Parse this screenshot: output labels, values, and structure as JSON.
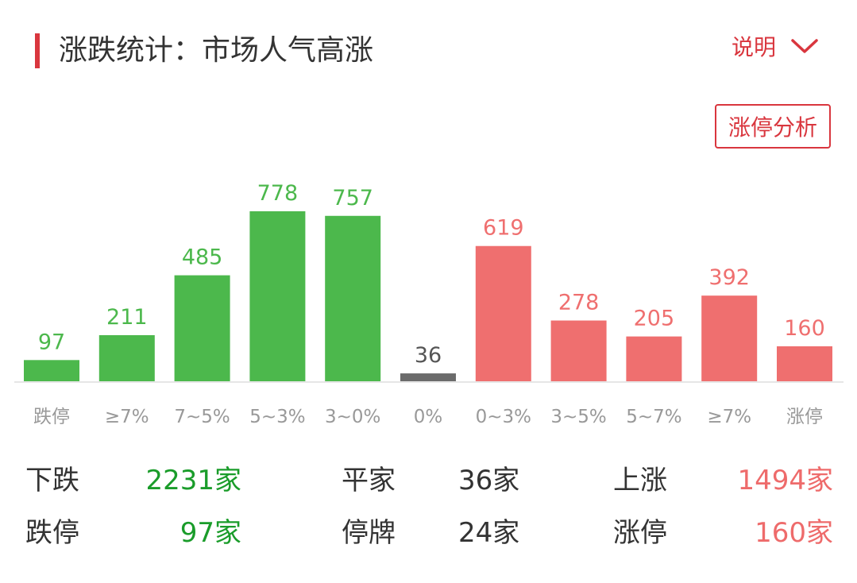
{
  "header": {
    "title": "涨跌统计：市场人气高涨",
    "explain_label": "说明",
    "analysis_button": "涨停分析"
  },
  "colors": {
    "down": "#4cb84c",
    "flat": "#6b6b6b",
    "up": "#ef6f6f",
    "accent": "#d9363e"
  },
  "chart_data": {
    "type": "bar",
    "categories": [
      "跌停",
      "≥7%",
      "7~5%",
      "5~3%",
      "3~0%",
      "0%",
      "0~3%",
      "3~5%",
      "5~7%",
      "≥7%",
      "涨停"
    ],
    "values": [
      97,
      211,
      485,
      778,
      757,
      36,
      619,
      278,
      205,
      392,
      160
    ],
    "groups": [
      "down",
      "down",
      "down",
      "down",
      "down",
      "flat",
      "up",
      "up",
      "up",
      "up",
      "up"
    ],
    "ylim": [
      0,
      800
    ],
    "xlabel": "",
    "ylabel": "",
    "grid": false
  },
  "stats": {
    "down_label": "下跌",
    "down_value": "2231家",
    "flat_label": "平家",
    "flat_value": "36家",
    "up_label": "上涨",
    "up_value": "1494家",
    "limit_down_label": "跌停",
    "limit_down_value": "97家",
    "suspended_label": "停牌",
    "suspended_value": "24家",
    "limit_up_label": "涨停",
    "limit_up_value": "160家"
  }
}
